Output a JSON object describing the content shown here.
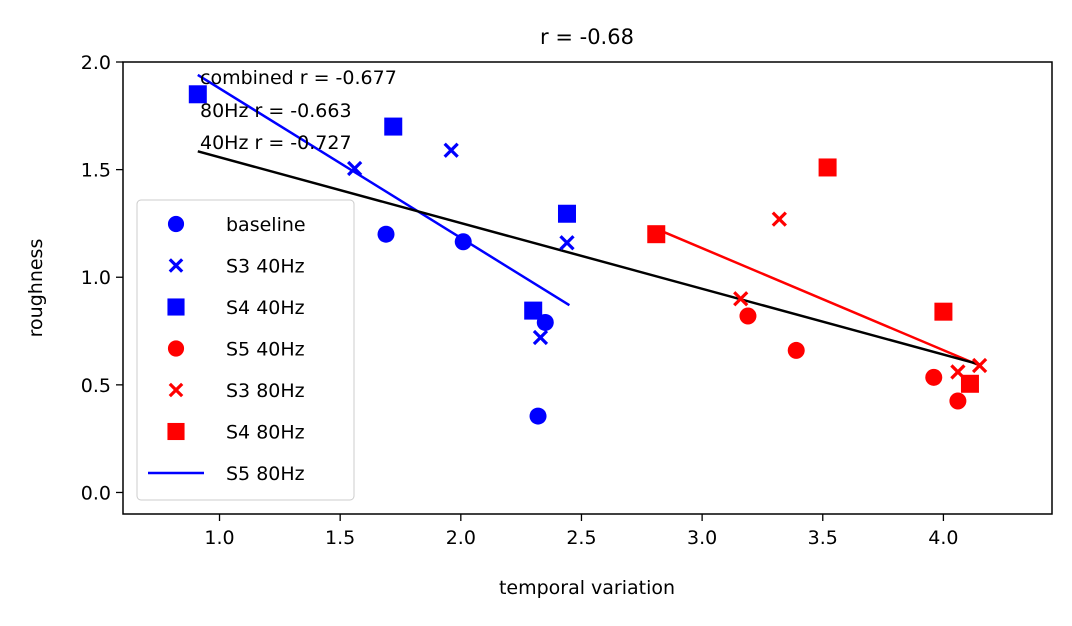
{
  "chart_data": {
    "type": "scatter",
    "title": "r = -0.68",
    "xlabel": "temporal variation",
    "ylabel": "roughness",
    "xlim": [
      0.6,
      4.45
    ],
    "ylim": [
      -0.1,
      2.0
    ],
    "xticks": [
      1.0,
      1.5,
      2.0,
      2.5,
      3.0,
      3.5,
      4.0
    ],
    "xtick_labels": [
      "1.0",
      "1.5",
      "2.0",
      "2.5",
      "3.0",
      "3.5",
      "4.0"
    ],
    "yticks": [
      0.0,
      0.5,
      1.0,
      1.5,
      2.0
    ],
    "ytick_labels": [
      "0.0",
      "0.5",
      "1.0",
      "1.5",
      "2.0"
    ],
    "annotations": [
      "combined r = -0.677",
      "80Hz r = -0.663",
      "40Hz r = -0.727"
    ],
    "legend_position": "lower-left",
    "series": [
      {
        "name": "baseline",
        "marker": "circle",
        "color": "#0000ff",
        "points": [
          [
            1.69,
            1.2
          ],
          [
            2.01,
            1.165
          ],
          [
            2.35,
            0.79
          ],
          [
            2.32,
            0.355
          ]
        ]
      },
      {
        "name": "S3 40Hz",
        "marker": "x",
        "color": "#0000ff",
        "points": [
          [
            1.56,
            1.505
          ],
          [
            1.96,
            1.59
          ],
          [
            2.44,
            1.16
          ],
          [
            2.33,
            0.72
          ]
        ]
      },
      {
        "name": "S4 40Hz",
        "marker": "square",
        "color": "#0000ff",
        "points": [
          [
            0.91,
            1.85
          ],
          [
            1.72,
            1.7
          ],
          [
            2.44,
            1.295
          ],
          [
            2.3,
            0.845
          ]
        ]
      },
      {
        "name": "S5 40Hz",
        "marker": "circle",
        "color": "#ff0000",
        "points": [
          [
            3.19,
            0.82
          ],
          [
            3.39,
            0.66
          ],
          [
            3.96,
            0.535
          ],
          [
            4.06,
            0.425
          ]
        ]
      },
      {
        "name": "S3 80Hz",
        "marker": "x",
        "color": "#ff0000",
        "points": [
          [
            3.16,
            0.9
          ],
          [
            3.32,
            1.27
          ],
          [
            4.06,
            0.56
          ],
          [
            4.15,
            0.59
          ]
        ]
      },
      {
        "name": "S4 80Hz",
        "marker": "square",
        "color": "#ff0000",
        "points": [
          [
            2.81,
            1.2
          ],
          [
            3.52,
            1.51
          ],
          [
            4.0,
            0.84
          ],
          [
            4.11,
            0.505
          ]
        ]
      },
      {
        "name": "S5 80Hz",
        "marker": "line",
        "color": "#0000ff",
        "points": []
      }
    ],
    "fit_lines": [
      {
        "color": "#0000ff",
        "points": [
          [
            0.91,
            1.94
          ],
          [
            2.45,
            0.87
          ]
        ]
      },
      {
        "color": "#ff0000",
        "points": [
          [
            2.81,
            1.225
          ],
          [
            4.15,
            0.59
          ]
        ]
      },
      {
        "color": "#000000",
        "points": [
          [
            0.91,
            1.585
          ],
          [
            4.15,
            0.595
          ]
        ]
      }
    ]
  }
}
